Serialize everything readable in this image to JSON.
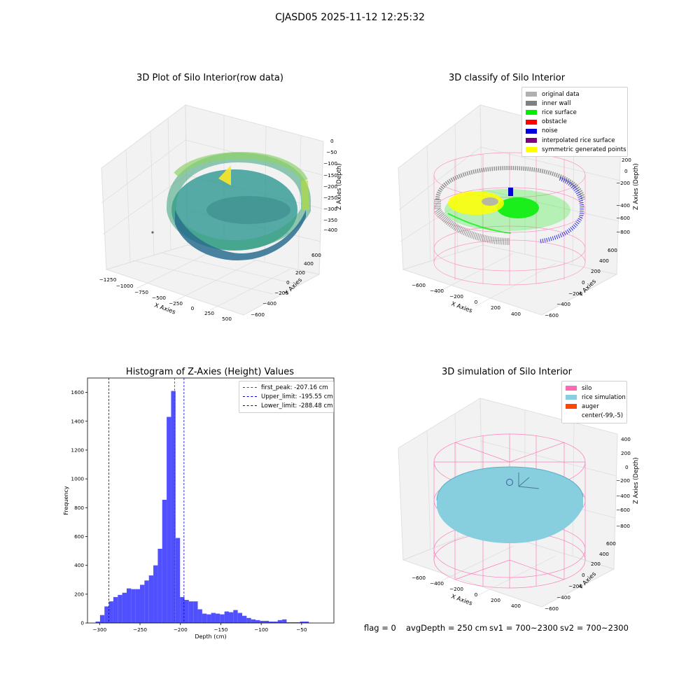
{
  "suptitle": "CJASD05 2025-11-12 12:25:32",
  "footer": {
    "flag": "flag = 0",
    "avg_depth": "avgDepth = 250 cm",
    "sv1": "sv1 = 700~2300",
    "sv2": "sv2 = 700~2300"
  },
  "chart_data": [
    {
      "type": "scatter",
      "title": "3D Plot of Silo Interior(row data)",
      "xlabel": "X Axies",
      "ylabel": "Y Axies",
      "zlabel": "Z Axies (Depth)",
      "x_ticks": [
        "−1250",
        "−1000",
        "−750",
        "−500",
        "−250",
        "0",
        "250",
        "500"
      ],
      "y_ticks": [
        "−600",
        "−400",
        "−200",
        "0",
        "200",
        "400",
        "600"
      ],
      "z_ticks": [
        "0",
        "−50",
        "−100",
        "−150",
        "−200",
        "−250",
        "−300",
        "−350",
        "−400"
      ],
      "colormap": [
        "#fde725",
        "#5ec962",
        "#21918c",
        "#3b528b"
      ]
    },
    {
      "type": "scatter",
      "title": "3D classify of Silo Interior",
      "xlabel": "X Axies",
      "ylabel": "Y Axies",
      "zlabel": "Z Axies (Depth)",
      "x_ticks": [
        "−600",
        "−400",
        "−200",
        "0",
        "200",
        "400"
      ],
      "y_ticks": [
        "−600",
        "−400",
        "−200",
        "0",
        "200",
        "400",
        "600"
      ],
      "z_ticks": [
        "200",
        "0",
        "−200",
        "−400",
        "−600",
        "−800"
      ],
      "legend": [
        {
          "label": "original data",
          "color": "#b0b0b0"
        },
        {
          "label": "inner wall",
          "color": "#808080"
        },
        {
          "label": "rice surface",
          "color": "#00ee00"
        },
        {
          "label": "obstacle",
          "color": "#ff0000"
        },
        {
          "label": "noise",
          "color": "#0000dd"
        },
        {
          "label": "interpolated rice surface",
          "color": "#800080"
        },
        {
          "label": "symmetric generated points",
          "color": "#ffff00"
        }
      ],
      "silo_color": "#ff8fc0"
    },
    {
      "type": "bar",
      "title": "Histogram of Z-Axies (Height) Values",
      "xlabel": "Depth (cm)",
      "ylabel": "Frequency",
      "xlim": [
        -315,
        -10
      ],
      "ylim": [
        0,
        1700
      ],
      "x_ticks": [
        -300,
        -250,
        -200,
        -150,
        -100,
        -50
      ],
      "y_ticks": [
        0,
        200,
        400,
        600,
        800,
        1000,
        1200,
        1400,
        1600
      ],
      "bin_start": -305,
      "bin_width": 5.5,
      "values": [
        10,
        55,
        115,
        150,
        180,
        195,
        210,
        240,
        235,
        235,
        265,
        295,
        330,
        400,
        515,
        855,
        1430,
        1610,
        590,
        180,
        160,
        150,
        150,
        95,
        65,
        60,
        70,
        65,
        60,
        80,
        75,
        90,
        70,
        50,
        35,
        25,
        20,
        15,
        15,
        10,
        10,
        20,
        25,
        5,
        5,
        5,
        10,
        10
      ],
      "bar_color": "#5050ff",
      "vlines": [
        {
          "label": "first_peak: -207.16 cm",
          "x": -207.16,
          "color": "#ff0000"
        },
        {
          "label": "Upper_limit: -195.55 cm",
          "x": -195.55,
          "color": "#0000cc"
        },
        {
          "label": "Lower_limit: -288.48 cm",
          "x": -288.48,
          "color": "#0000cc"
        }
      ]
    },
    {
      "type": "scatter",
      "title": "3D simulation of Silo Interior",
      "xlabel": "X Axies",
      "ylabel": "Y Axies",
      "zlabel": "Z Axies (Depth)",
      "x_ticks": [
        "−600",
        "−400",
        "−200",
        "0",
        "200",
        "400"
      ],
      "y_ticks": [
        "−600",
        "−400",
        "−200",
        "0",
        "200",
        "400",
        "600"
      ],
      "z_ticks": [
        "400",
        "200",
        "0",
        "−200",
        "−400",
        "−600",
        "−800"
      ],
      "legend": [
        {
          "label": "silo",
          "color": "#ff69b4"
        },
        {
          "label": "rice simulation",
          "color": "#87cedf"
        },
        {
          "label": "auger",
          "color": "#ff4500"
        },
        {
          "label": "center(-99,-5)",
          "color": ""
        }
      ]
    }
  ]
}
